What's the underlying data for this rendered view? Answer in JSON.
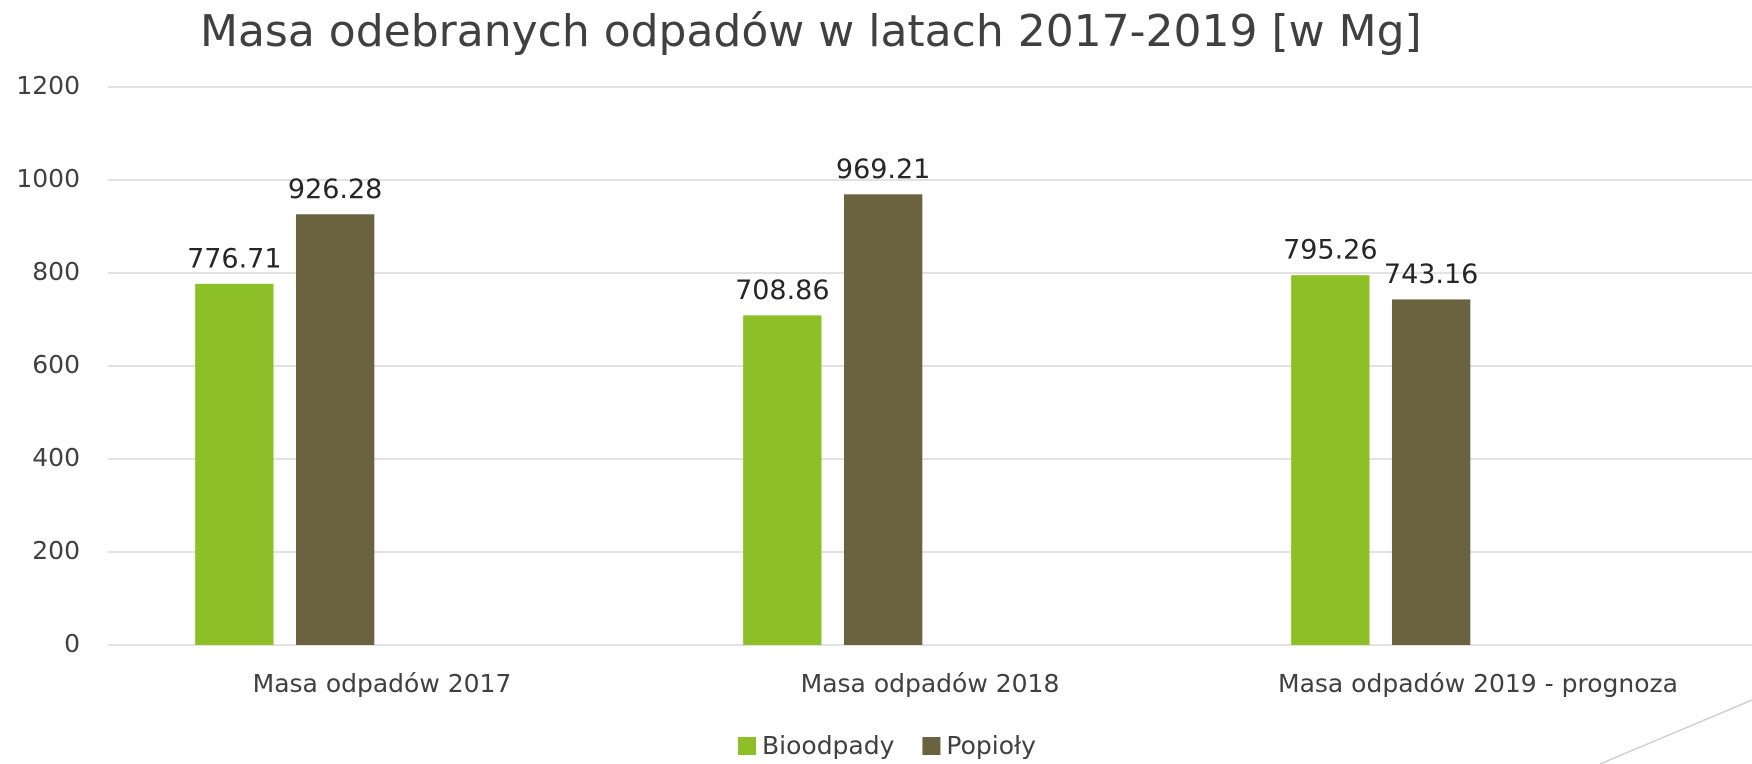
{
  "chart_data": {
    "type": "bar",
    "title": "Masa odebranych odpadów w latach 2017-2019 [w Mg]",
    "categories": [
      "Masa odpadów 2017",
      "Masa odpadów 2018",
      "Masa odpadów 2019 - prognoza"
    ],
    "series": [
      {
        "name": "Bioodpady",
        "color": "#8dc026",
        "values": [
          776.71,
          708.86,
          795.26
        ]
      },
      {
        "name": "Popioły",
        "color": "#6b6340",
        "values": [
          926.28,
          969.21,
          743.16
        ]
      }
    ],
    "ylim": [
      0,
      1200
    ],
    "yticks": [
      0,
      200,
      400,
      600,
      800,
      1000,
      1200
    ],
    "grid": true,
    "legend": "bottom"
  }
}
